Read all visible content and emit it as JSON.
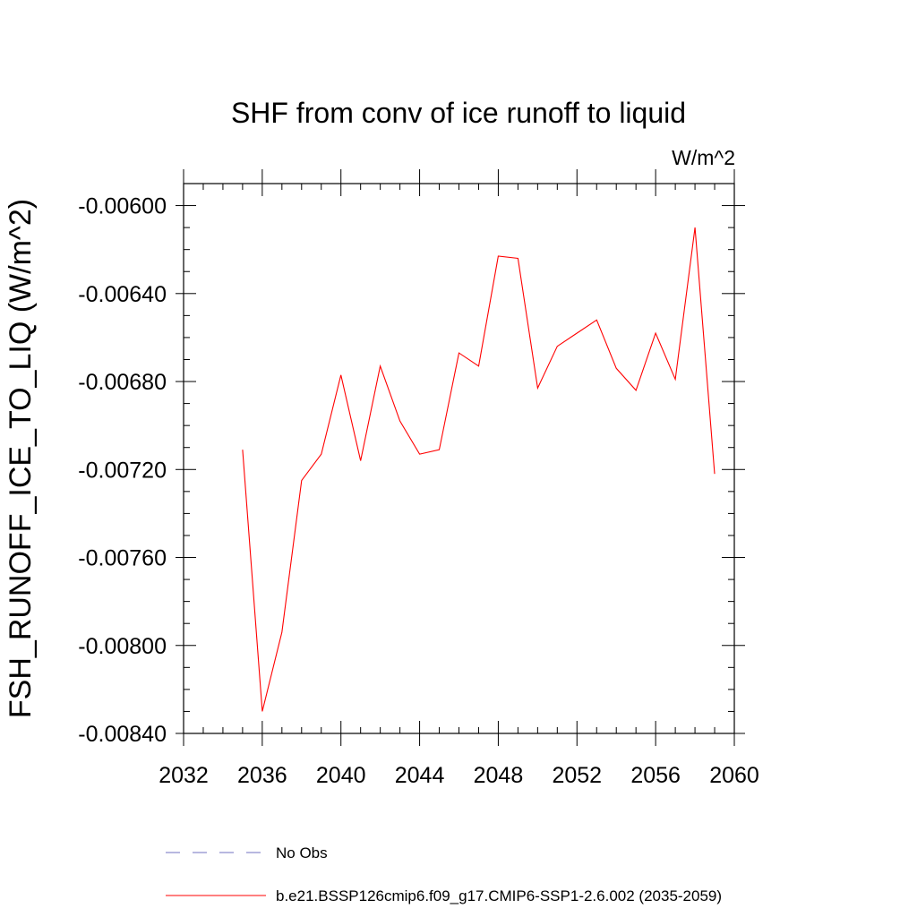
{
  "chart_data": {
    "type": "line",
    "title": "SHF from conv of ice runoff to liquid",
    "units_label": "W/m^2",
    "ylabel": "FSH_RUNOFF_ICE_TO_LIQ  (W/m^2)",
    "xlabel": "",
    "xlim": [
      2032,
      2060
    ],
    "ylim": [
      -0.0084,
      -0.0059
    ],
    "x_ticks": [
      2032,
      2036,
      2040,
      2044,
      2048,
      2052,
      2056,
      2060
    ],
    "x_tick_labels": [
      "2032",
      "2036",
      "2040",
      "2044",
      "2048",
      "2052",
      "2056",
      "2060"
    ],
    "y_ticks": [
      -0.006,
      -0.0064,
      -0.0068,
      -0.0072,
      -0.0076,
      -0.008,
      -0.0084
    ],
    "y_tick_labels": [
      "-0.00600",
      "-0.00640",
      "-0.00680",
      "-0.00720",
      "-0.00760",
      "-0.00800",
      "-0.00840"
    ],
    "series": [
      {
        "name": "b.e21.BSSP126cmip6.f09_g17.CMIP6-SSP1-2.6.002 (2035-2059)",
        "color": "#ff0000",
        "x": [
          2035,
          2036,
          2037,
          2038,
          2039,
          2040,
          2041,
          2042,
          2043,
          2044,
          2045,
          2046,
          2047,
          2048,
          2049,
          2050,
          2051,
          2052,
          2053,
          2054,
          2055,
          2056,
          2057,
          2058,
          2059
        ],
        "values": [
          -0.00711,
          -0.0083,
          -0.00794,
          -0.00725,
          -0.00713,
          -0.00677,
          -0.00716,
          -0.00673,
          -0.00698,
          -0.00713,
          -0.00711,
          -0.00667,
          -0.00673,
          -0.00623,
          -0.00624,
          -0.00683,
          -0.00664,
          -0.00658,
          -0.00652,
          -0.00674,
          -0.00684,
          -0.00658,
          -0.00679,
          -0.0061,
          -0.00722
        ]
      }
    ],
    "legend": [
      {
        "label": "No Obs",
        "style": "dashed",
        "color": "#7070c0"
      },
      {
        "label": "b.e21.BSSP126cmip6.f09_g17.CMIP6-SSP1-2.6.002 (2035-2059)",
        "style": "solid",
        "color": "#ff0000"
      }
    ]
  }
}
